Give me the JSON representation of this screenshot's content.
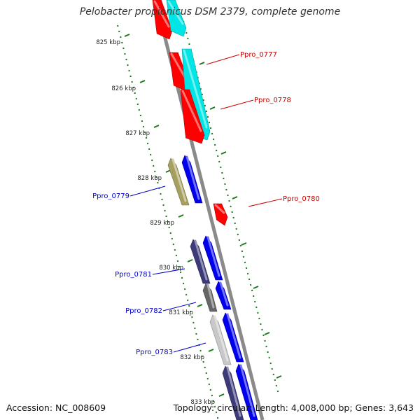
{
  "title": "Pelobacter propionicus DSM 2379, complete genome",
  "footer": {
    "accession": "Accession: NC_008609",
    "summary": "Topology: circular; Length: 4,008,000 bp; Genes: 3,643"
  },
  "colors": {
    "backbone": "#8a8a8a",
    "tick": "#1a7a1a",
    "label_red": "#cc0000",
    "label_blue": "#0000cc",
    "red": "#ff0000",
    "cyan": "#00e5e5",
    "blue": "#0000ee",
    "olive": "#a6a060",
    "slate": "#3d3a7a",
    "gray": "#666666",
    "lightgray": "#c8c8c8"
  },
  "scale_labels": [
    "825 kbp",
    "826 kbp",
    "827 kbp",
    "828 kbp",
    "829 kbp",
    "830 kbp",
    "831 kbp",
    "832 kbp",
    "833 kbp"
  ],
  "features": [
    {
      "color": "red",
      "side": "forward"
    },
    {
      "color": "cyan",
      "side": "forward"
    },
    {
      "color": "red",
      "side": "forward"
    },
    {
      "color": "cyan",
      "side": "forward"
    },
    {
      "color": "red",
      "side": "forward"
    },
    {
      "color": "olive",
      "side": "reverse"
    },
    {
      "color": "blue",
      "side": "reverse"
    },
    {
      "color": "red",
      "side": "forward"
    },
    {
      "color": "slate",
      "side": "reverse"
    },
    {
      "color": "blue",
      "side": "reverse"
    },
    {
      "color": "gray",
      "side": "reverse"
    },
    {
      "color": "blue",
      "side": "reverse"
    },
    {
      "color": "lightgray",
      "side": "reverse"
    },
    {
      "color": "blue",
      "side": "reverse"
    },
    {
      "color": "slate",
      "side": "reverse"
    },
    {
      "color": "blue",
      "side": "reverse"
    }
  ],
  "gene_labels": [
    {
      "text": "Ppro_0777",
      "color": "label_red"
    },
    {
      "text": "Ppro_0778",
      "color": "label_red"
    },
    {
      "text": "Ppro_0779",
      "color": "label_blue"
    },
    {
      "text": "Ppro_0780",
      "color": "label_red"
    },
    {
      "text": "Ppro_0781",
      "color": "label_blue"
    },
    {
      "text": "Ppro_0782",
      "color": "label_blue"
    },
    {
      "text": "Ppro_0783",
      "color": "label_blue"
    }
  ]
}
